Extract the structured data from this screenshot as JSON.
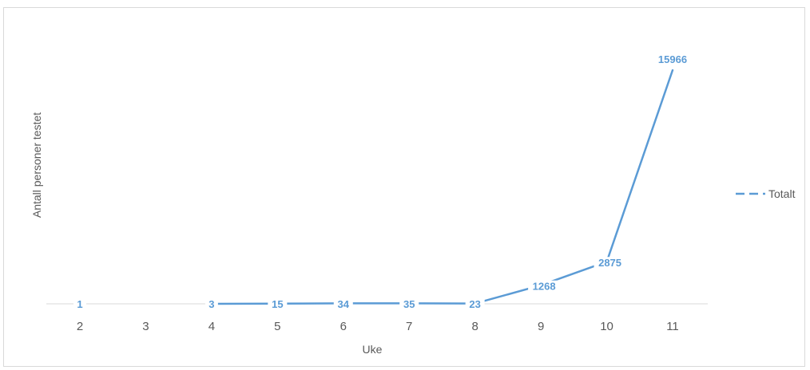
{
  "chart_data": {
    "type": "line",
    "title": "",
    "xlabel": "Uke",
    "ylabel": "Antall personer testet",
    "categories": [
      "2",
      "3",
      "4",
      "5",
      "6",
      "7",
      "8",
      "9",
      "10",
      "11"
    ],
    "series": [
      {
        "name": "Totalt",
        "color": "#5b9bd5",
        "values": [
          1,
          null,
          3,
          15,
          34,
          35,
          23,
          1268,
          2875,
          15966
        ]
      }
    ],
    "ylim": [
      0,
      17000
    ],
    "grid": false,
    "legend_position": "right",
    "data_labels": true
  }
}
